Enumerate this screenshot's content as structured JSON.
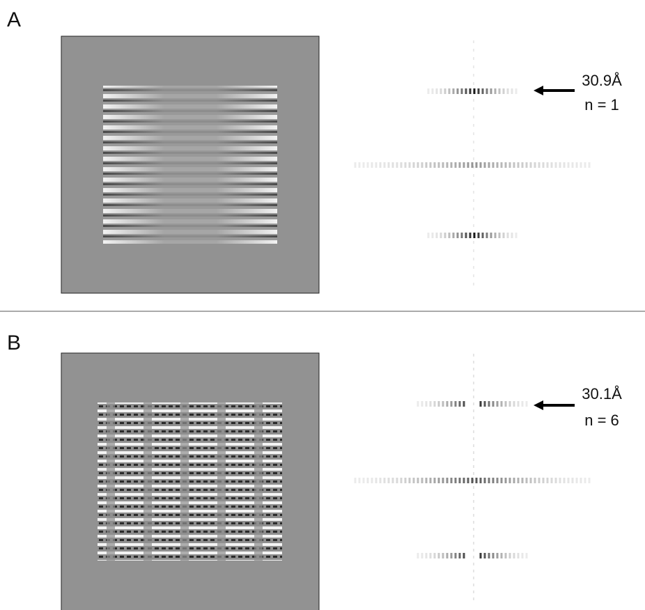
{
  "panels": [
    {
      "label": "A",
      "annotation": {
        "spacing": "30.9Å",
        "order": "n = 1"
      }
    },
    {
      "label": "B",
      "annotation": {
        "spacing": "30.1Å",
        "order": "n = 6"
      }
    }
  ]
}
